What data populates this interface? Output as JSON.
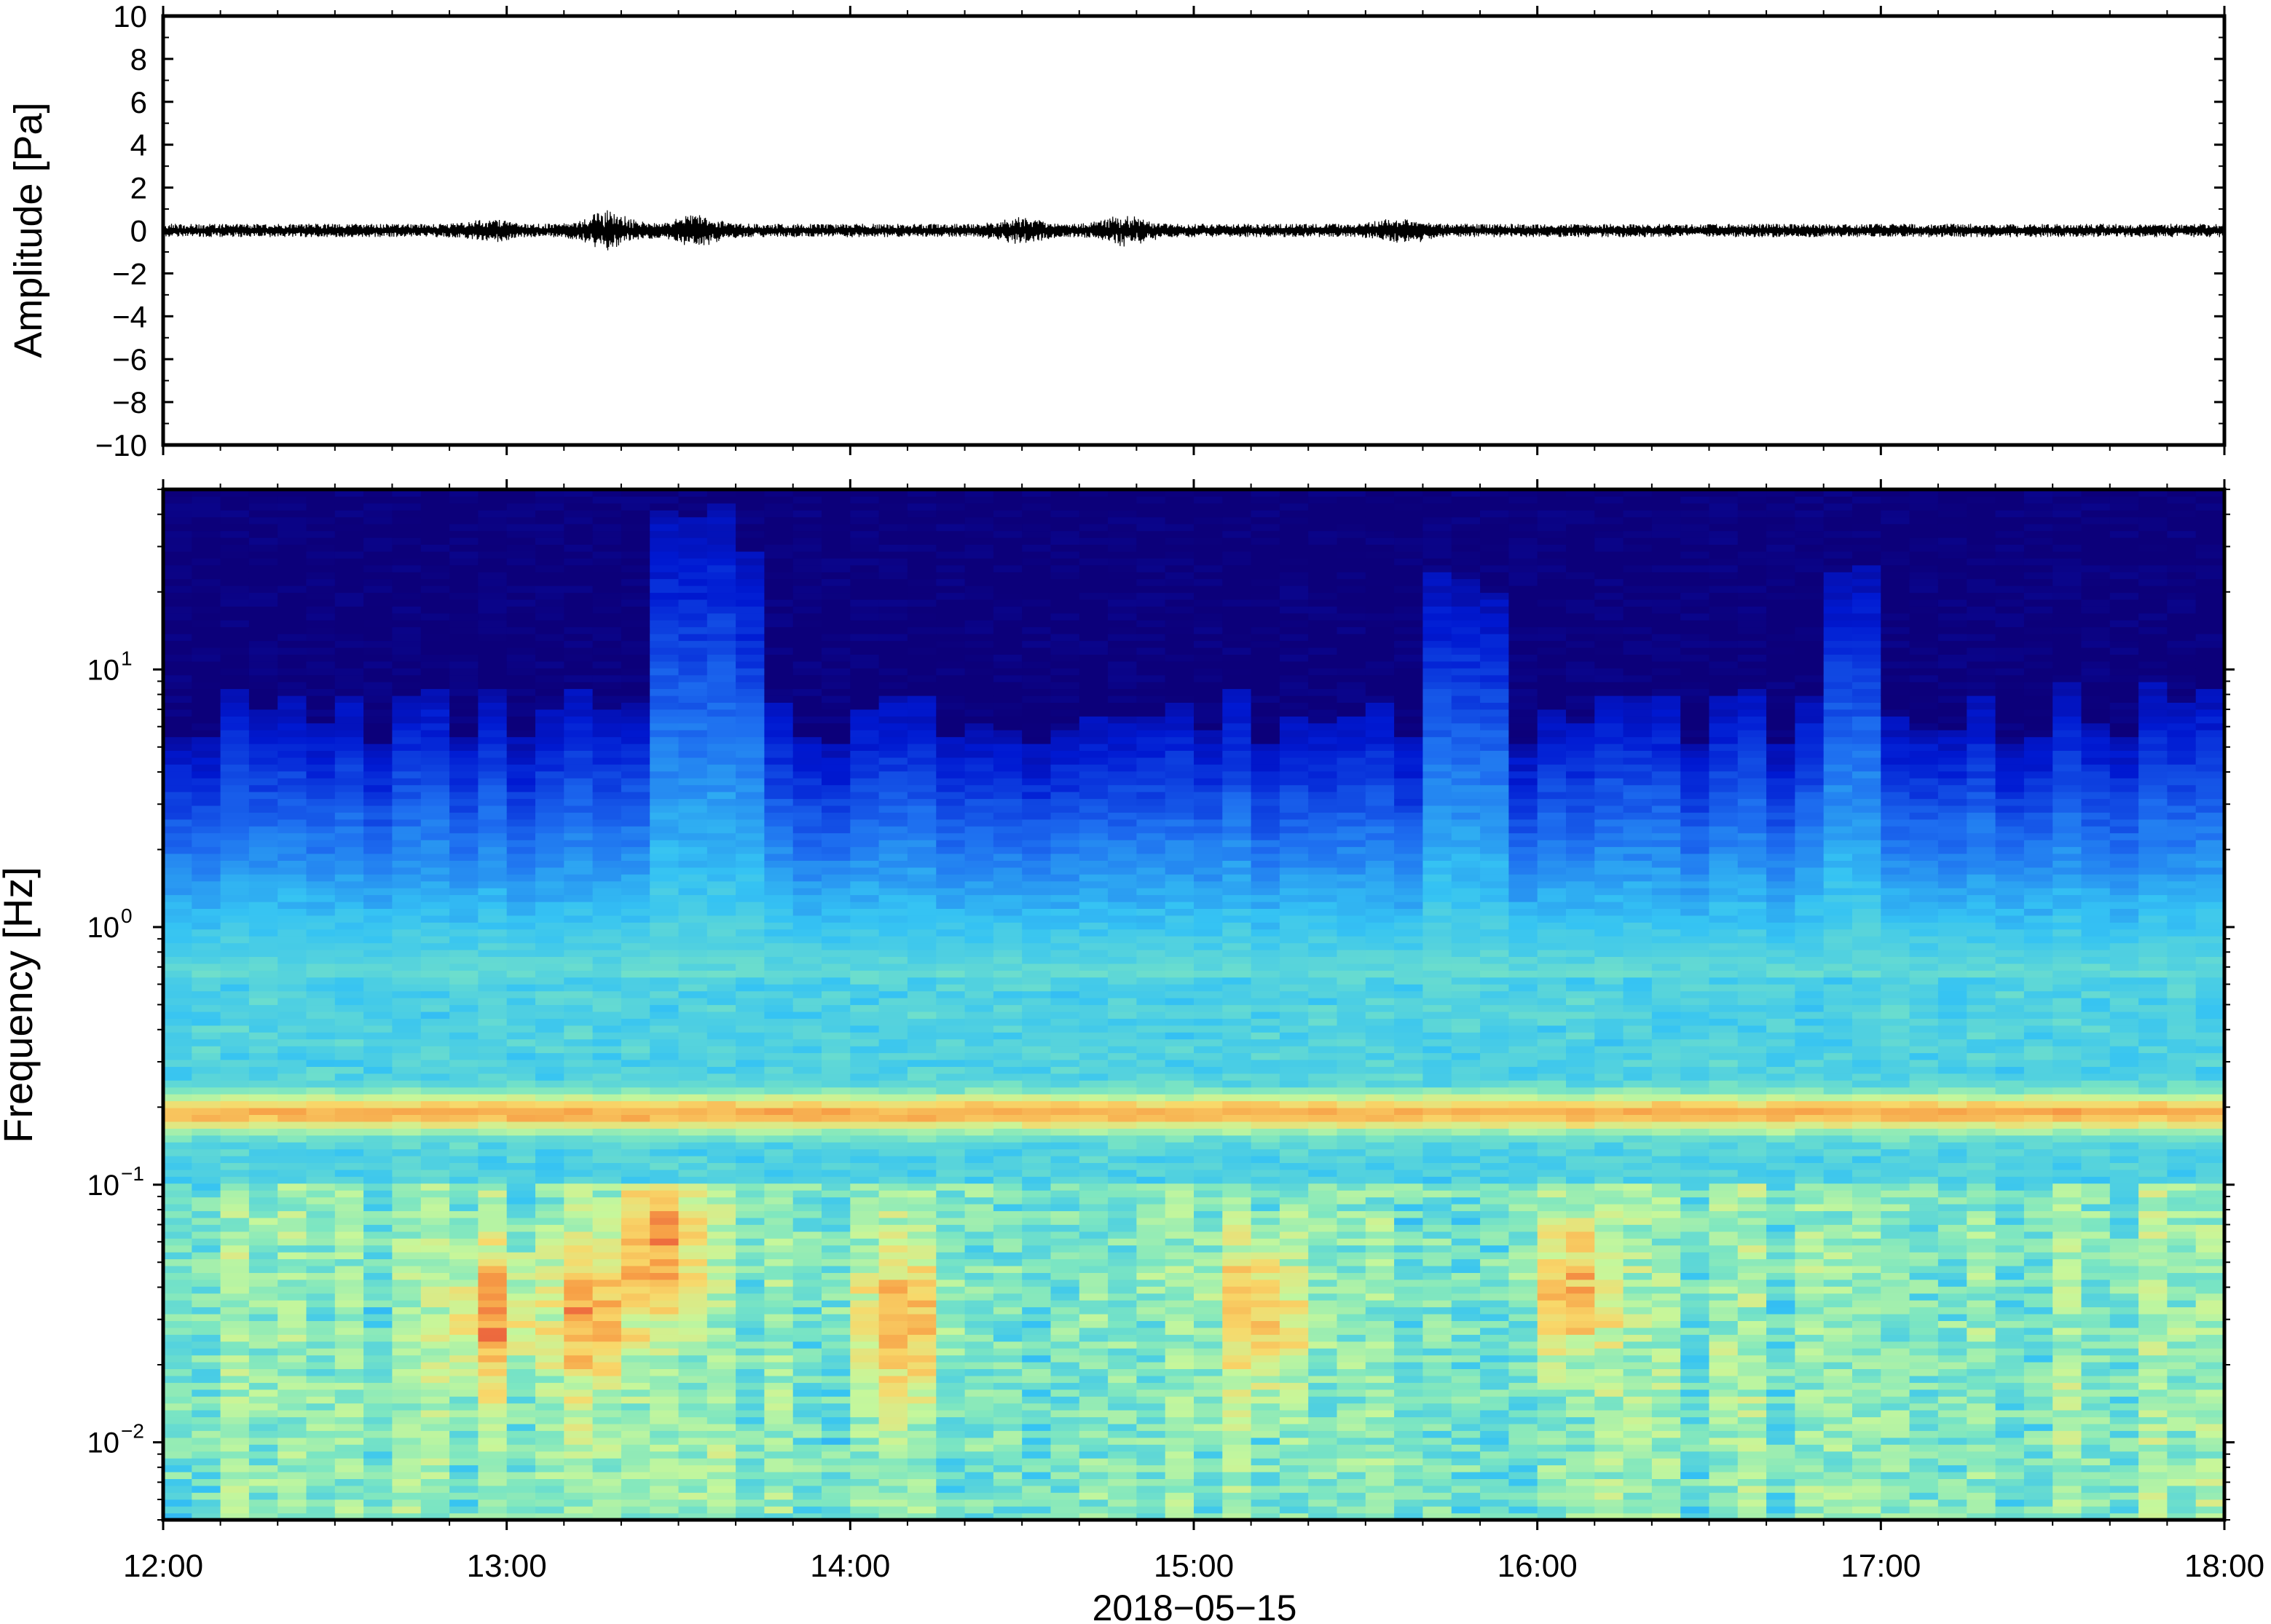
{
  "chart_data": [
    {
      "type": "line",
      "panel": "waveform",
      "ylabel": "Amplitude [Pa]",
      "ylim": [
        -10,
        10
      ],
      "yticks": [
        10,
        8,
        6,
        4,
        2,
        0,
        -2,
        -4,
        -6,
        -8,
        -10
      ],
      "ytick_labels": [
        "10",
        "8",
        "6",
        "4",
        "2",
        "0",
        "−2",
        "−4",
        "−6",
        "−8",
        "−10"
      ],
      "xlim_hours": [
        12,
        18
      ],
      "series": [
        {
          "color": "#000000",
          "baseline": 0,
          "typical_abs_amplitude": 0.25,
          "bursts": [
            {
              "hour": 12.95,
              "amp": 0.3
            },
            {
              "hour": 13.3,
              "amp": 0.7
            },
            {
              "hour": 13.55,
              "amp": 0.5
            },
            {
              "hour": 14.5,
              "amp": 0.35
            },
            {
              "hour": 14.8,
              "amp": 0.5
            },
            {
              "hour": 15.6,
              "amp": 0.4
            }
          ]
        }
      ]
    },
    {
      "type": "heatmap",
      "panel": "spectrogram",
      "ylabel": "Frequency [Hz]",
      "xlabel": "2018−05−15",
      "yscale": "log",
      "ylim": [
        0.005,
        50
      ],
      "yticks": [
        0.01,
        0.1,
        1,
        10
      ],
      "ytick_labels": [
        {
          "base": "10",
          "exp": "−2"
        },
        {
          "base": "10",
          "exp": "−1"
        },
        {
          "base": "10",
          "exp": "0"
        },
        {
          "base": "10",
          "exp": "1"
        }
      ],
      "xlim_hours": [
        12,
        18
      ],
      "xticks_hours": [
        12,
        13,
        14,
        15,
        16,
        17,
        18
      ],
      "xtick_labels": [
        "12:00",
        "13:00",
        "14:00",
        "15:00",
        "16:00",
        "17:00",
        "18:00"
      ],
      "colormap": [
        "#0c007a",
        "#0019d2",
        "#1e6ff0",
        "#35c3f3",
        "#7de6c1",
        "#c6f79b",
        "#f8d86a",
        "#f79f46",
        "#e8523a"
      ],
      "features": {
        "microseism_peak_hz": 0.19,
        "background_cutoff_hz": 3,
        "high_energy_periods": [
          {
            "start_hour": 13.45,
            "end_hour": 13.7,
            "upper_hz": 15
          },
          {
            "start_hour": 15.65,
            "end_hour": 15.9,
            "upper_hz": 12
          },
          {
            "start_hour": 16.85,
            "end_hour": 16.95,
            "upper_hz": 10
          }
        ],
        "low_frequency_hotspots": [
          {
            "hour": 12.95,
            "hz": 0.03
          },
          {
            "hour": 13.25,
            "hz": 0.03
          },
          {
            "hour": 13.45,
            "hz": 0.06
          },
          {
            "hour": 14.15,
            "hz": 0.03
          },
          {
            "hour": 15.2,
            "hz": 0.03
          },
          {
            "hour": 16.1,
            "hz": 0.04
          }
        ]
      }
    }
  ]
}
